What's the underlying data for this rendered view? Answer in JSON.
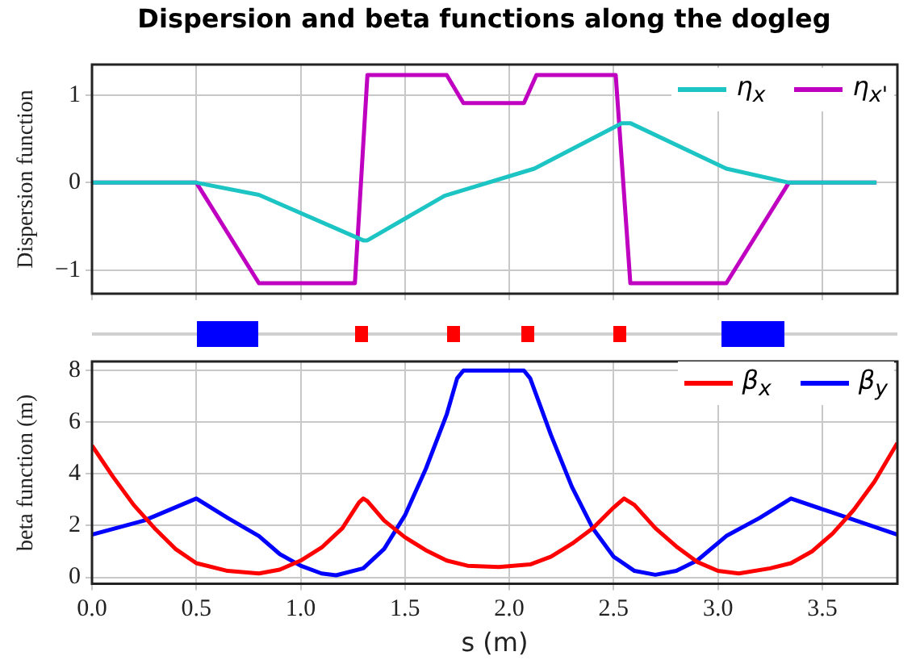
{
  "chart_data": [
    {
      "type": "line",
      "title": "Dispersion and beta functions along the dogleg",
      "ylabel": "Dispersion function",
      "xlim": [
        0,
        3.86
      ],
      "ylim": [
        -1.27,
        1.35
      ],
      "xticks": [
        {
          "value": 0,
          "label": null
        },
        {
          "value": 0.5,
          "label": null
        },
        {
          "value": 1,
          "label": null
        },
        {
          "value": 1.5,
          "label": null
        },
        {
          "value": 2,
          "label": null
        },
        {
          "value": 2.5,
          "label": null
        },
        {
          "value": 3,
          "label": null
        },
        {
          "value": 3.5,
          "label": null
        }
      ],
      "yticks": [
        {
          "value": -1,
          "label": "−1"
        },
        0,
        1
      ],
      "tick_labels": "y",
      "grid": true,
      "legend": "top right",
      "marker": "none",
      "line_style": "solid",
      "series": [
        {
          "name": "η$_{x}$",
          "color": "#1cc4c4",
          "x": [
            0,
            0.5,
            0.8,
            1.3,
            1.32,
            1.69,
            2.12,
            2.54,
            2.58,
            3.04,
            3.34,
            3.76
          ],
          "values": [
            0,
            0,
            -0.14,
            -0.66,
            -0.66,
            -0.15,
            0.16,
            0.68,
            0.68,
            0.16,
            0,
            0
          ]
        },
        {
          "name": "η$_{x'}$",
          "color": "#c000c0",
          "x": [
            0,
            0.5,
            0.8,
            1.26,
            1.32,
            1.7,
            1.78,
            2.07,
            2.13,
            2.51,
            2.58,
            3.04,
            3.34,
            3.76
          ],
          "values": [
            0,
            0,
            -1.15,
            -1.15,
            1.23,
            1.23,
            0.91,
            0.91,
            1.23,
            1.23,
            -1.15,
            -1.15,
            0,
            0
          ]
        }
      ]
    },
    {
      "type": "line",
      "xlabel": "s (m)",
      "ylabel": "beta function (m)",
      "xlim": [
        0,
        3.86
      ],
      "ylim": [
        -0.25,
        8.35
      ],
      "xticks": [
        {
          "value": 0,
          "label": "0.0"
        },
        0.5,
        {
          "value": 1,
          "label": "1.0"
        },
        1.5,
        {
          "value": 2,
          "label": "2.0"
        },
        2.5,
        {
          "value": 3,
          "label": "3.0"
        },
        3.5
      ],
      "yticks": [
        0,
        2,
        4,
        6,
        8
      ],
      "grid": true,
      "legend": "top right",
      "marker": "none",
      "line_style": "solid",
      "series": [
        {
          "name": "β$_{x}$",
          "color": "#ff0000",
          "x": [
            0,
            0.1,
            0.2,
            0.3,
            0.4,
            0.5,
            0.65,
            0.8,
            0.9,
            1.0,
            1.1,
            1.2,
            1.28,
            1.3,
            1.32,
            1.4,
            1.5,
            1.6,
            1.7,
            1.8,
            1.95,
            2.1,
            2.2,
            2.3,
            2.4,
            2.5,
            2.55,
            2.6,
            2.7,
            2.8,
            2.9,
            3.0,
            3.1,
            3.25,
            3.35,
            3.45,
            3.55,
            3.65,
            3.75,
            3.86
          ],
          "values": [
            5.1,
            3.9,
            2.8,
            1.9,
            1.1,
            0.55,
            0.25,
            0.15,
            0.3,
            0.65,
            1.15,
            1.9,
            2.9,
            3.05,
            2.95,
            2.2,
            1.55,
            1.05,
            0.65,
            0.45,
            0.4,
            0.5,
            0.8,
            1.3,
            1.9,
            2.7,
            3.05,
            2.8,
            1.9,
            1.2,
            0.6,
            0.25,
            0.15,
            0.35,
            0.55,
            1.0,
            1.7,
            2.6,
            3.7,
            5.2
          ]
        },
        {
          "name": "β$_{y}$",
          "color": "#0000ff",
          "x": [
            0,
            0.25,
            0.5,
            0.65,
            0.8,
            0.9,
            1.0,
            1.1,
            1.17,
            1.3,
            1.4,
            1.5,
            1.6,
            1.7,
            1.75,
            1.78,
            2.07,
            2.1,
            2.2,
            2.3,
            2.4,
            2.5,
            2.6,
            2.7,
            2.8,
            2.9,
            3.04,
            3.2,
            3.35,
            3.55,
            3.86
          ],
          "values": [
            1.65,
            2.2,
            3.05,
            2.3,
            1.6,
            0.9,
            0.45,
            0.15,
            0.08,
            0.35,
            1.1,
            2.4,
            4.2,
            6.3,
            7.7,
            8.0,
            8.0,
            7.7,
            5.5,
            3.5,
            1.9,
            0.8,
            0.25,
            0.1,
            0.25,
            0.65,
            1.6,
            2.3,
            3.05,
            2.5,
            1.65
          ]
        }
      ]
    }
  ]
}
